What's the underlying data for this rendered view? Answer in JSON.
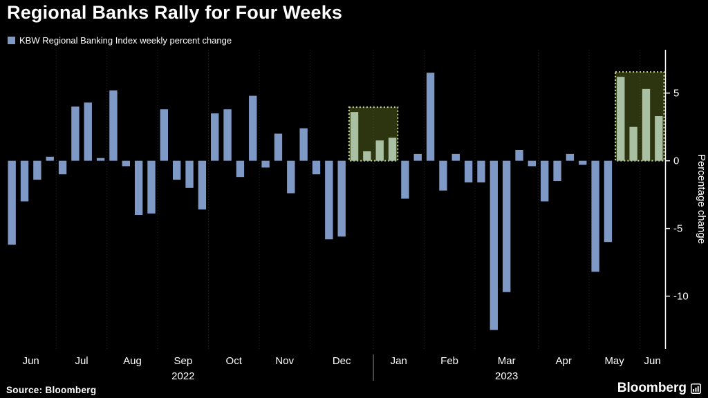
{
  "title": "Regional Banks Rally for Four Weeks",
  "legend_label": "KBW Regional Banking Index weekly percent change",
  "source_text": "Source: Bloomberg",
  "brand": "Bloomberg",
  "colors": {
    "background": "#000000",
    "bar": "#7f99c6",
    "highlight_bar": "#a9c0a2",
    "highlight_box_fill": "rgba(110,130,40,0.40)",
    "highlight_box_border": "#cbdd90",
    "axis": "#ffffff",
    "gridline": "#2a2a2a",
    "divider": "#888888",
    "text": "#ffffff"
  },
  "chart_data": {
    "type": "bar",
    "title": "Regional Banks Rally for Four Weeks",
    "series_name": "KBW Regional Banking Index weekly percent change",
    "ylabel": "Percentage change",
    "yticks": [
      5,
      0,
      -5,
      -10
    ],
    "ylim": [
      -13.9,
      8.2
    ],
    "grid": "vertical-dashed-month-boundaries",
    "legend_position": "top-left",
    "months": [
      {
        "label": "Jun",
        "weeks": 4
      },
      {
        "label": "Jul",
        "weeks": 4
      },
      {
        "label": "Aug",
        "weeks": 4
      },
      {
        "label": "Sep",
        "weeks": 4
      },
      {
        "label": "Oct",
        "weeks": 4
      },
      {
        "label": "Nov",
        "weeks": 4
      },
      {
        "label": "Dec",
        "weeks": 5
      },
      {
        "label": "Jan",
        "weeks": 4
      },
      {
        "label": "Feb",
        "weeks": 4
      },
      {
        "label": "Mar",
        "weeks": 5
      },
      {
        "label": "Apr",
        "weeks": 4
      },
      {
        "label": "May",
        "weeks": 4
      },
      {
        "label": "Jun",
        "weeks": 2
      }
    ],
    "years": [
      {
        "label": "2022",
        "anchor_month_index": 3
      },
      {
        "label": "2023",
        "anchor_month_index": 9
      }
    ],
    "year_divider_after_month_index": 6,
    "values": [
      -6.2,
      -3.0,
      -1.4,
      0.3,
      -1.0,
      4.0,
      4.3,
      0.2,
      5.2,
      -0.4,
      -4.0,
      -3.9,
      3.8,
      -1.4,
      -2.0,
      -3.6,
      3.5,
      3.8,
      -1.2,
      4.8,
      -0.5,
      2.0,
      -2.4,
      2.4,
      -1.0,
      -5.8,
      -5.6,
      3.6,
      0.7,
      1.5,
      1.7,
      -2.8,
      0.5,
      6.5,
      -2.2,
      0.5,
      -1.6,
      -1.6,
      -12.5,
      -9.7,
      0.8,
      -0.4,
      -3.0,
      -1.5,
      0.5,
      -0.3,
      -8.2,
      -6.0,
      6.2,
      2.5,
      5.3,
      3.3
    ],
    "highlights": [
      {
        "start": 27,
        "end": 30
      },
      {
        "start": 48,
        "end": 51
      }
    ]
  }
}
